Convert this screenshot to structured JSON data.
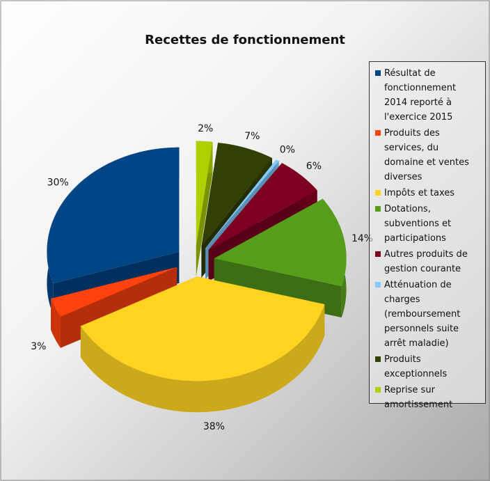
{
  "chart_data": {
    "type": "pie3d",
    "title": "Recettes de fonctionnement",
    "categories": [
      "Résultat de fonctionnement 2014 reporté à l'exercice 2015",
      "Produits des services, du domaine et ventes diverses",
      "Impôts et taxes",
      "Dotations, subventions et participations",
      "Autres produits de gestion courante",
      "Atténuation de charges (remboursement personnels suite arrêt maladie)",
      "Produits exceptionnels",
      "Reprise sur amortissement"
    ],
    "values": [
      30,
      3,
      38,
      14,
      6,
      0.4,
      7,
      2
    ],
    "value_labels": [
      "30%",
      "3%",
      "38%",
      "14%",
      "6%",
      "0%",
      "7%",
      "2%"
    ],
    "colors": [
      "#004586",
      "#ff420e",
      "#ffd320",
      "#579d1c",
      "#7e0021",
      "#83caff",
      "#314004",
      "#aecf00"
    ],
    "legend": "right"
  }
}
